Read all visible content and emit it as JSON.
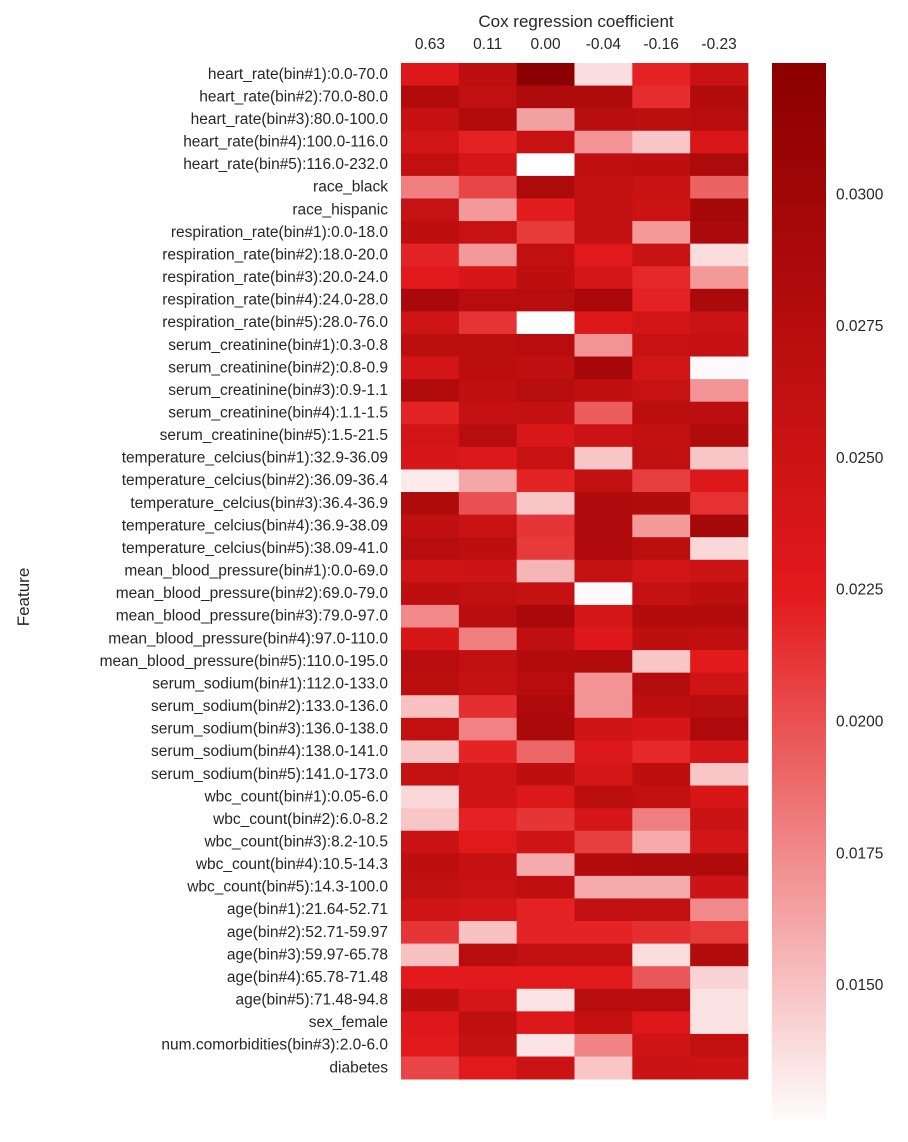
{
  "chart_data": {
    "type": "heatmap",
    "title": "Cox regression coefficient",
    "ylabel": "Feature",
    "columns": [
      "0.63",
      "0.11",
      "0.00",
      "-0.04",
      "-0.16",
      "-0.23"
    ],
    "rows": [
      "heart_rate(bin#1):0.0-70.0",
      "heart_rate(bin#2):70.0-80.0",
      "heart_rate(bin#3):80.0-100.0",
      "heart_rate(bin#4):100.0-116.0",
      "heart_rate(bin#5):116.0-232.0",
      "race_black",
      "race_hispanic",
      "respiration_rate(bin#1):0.0-18.0",
      "respiration_rate(bin#2):18.0-20.0",
      "respiration_rate(bin#3):20.0-24.0",
      "respiration_rate(bin#4):24.0-28.0",
      "respiration_rate(bin#5):28.0-76.0",
      "serum_creatinine(bin#1):0.3-0.8",
      "serum_creatinine(bin#2):0.8-0.9",
      "serum_creatinine(bin#3):0.9-1.1",
      "serum_creatinine(bin#4):1.1-1.5",
      "serum_creatinine(bin#5):1.5-21.5",
      "temperature_celcius(bin#1):32.9-36.09",
      "temperature_celcius(bin#2):36.09-36.4",
      "temperature_celcius(bin#3):36.4-36.9",
      "temperature_celcius(bin#4):36.9-38.09",
      "temperature_celcius(bin#5):38.09-41.0",
      "mean_blood_pressure(bin#1):0.0-69.0",
      "mean_blood_pressure(bin#2):69.0-79.0",
      "mean_blood_pressure(bin#3):79.0-97.0",
      "mean_blood_pressure(bin#4):97.0-110.0",
      "mean_blood_pressure(bin#5):110.0-195.0",
      "serum_sodium(bin#1):112.0-133.0",
      "serum_sodium(bin#2):133.0-136.0",
      "serum_sodium(bin#3):136.0-138.0",
      "serum_sodium(bin#4):138.0-141.0",
      "serum_sodium(bin#5):141.0-173.0",
      "wbc_count(bin#1):0.05-6.0",
      "wbc_count(bin#2):6.0-8.2",
      "wbc_count(bin#3):8.2-10.5",
      "wbc_count(bin#4):10.5-14.3",
      "wbc_count(bin#5):14.3-100.0",
      "age(bin#1):21.64-52.71",
      "age(bin#2):52.71-59.97",
      "age(bin#3):59.97-65.78",
      "age(bin#4):65.78-71.48",
      "age(bin#5):71.48-94.8",
      "sex_female",
      "num.comorbidities(bin#3):2.0-6.0",
      "diabetes"
    ],
    "values": [
      [
        0.023,
        0.0266,
        0.0325,
        0.0137,
        0.0221,
        0.0254
      ],
      [
        0.0281,
        0.0263,
        0.0283,
        0.0284,
        0.0216,
        0.028
      ],
      [
        0.0259,
        0.0281,
        0.0165,
        0.0272,
        0.027,
        0.0275
      ],
      [
        0.0245,
        0.0221,
        0.0256,
        0.017,
        0.0148,
        0.0236
      ],
      [
        0.0262,
        0.0241,
        0.012,
        0.0265,
        0.0268,
        0.0286
      ],
      [
        0.018,
        0.0205,
        0.0286,
        0.0262,
        0.0255,
        0.0192
      ],
      [
        0.0257,
        0.0168,
        0.0223,
        0.0262,
        0.0252,
        0.0295
      ],
      [
        0.0268,
        0.0257,
        0.021,
        0.0261,
        0.0168,
        0.0288
      ],
      [
        0.022,
        0.0168,
        0.0262,
        0.0228,
        0.0254,
        0.0138
      ],
      [
        0.0225,
        0.0238,
        0.0267,
        0.024,
        0.0218,
        0.0168
      ],
      [
        0.029,
        0.0275,
        0.0274,
        0.0292,
        0.0221,
        0.0288
      ],
      [
        0.0248,
        0.0213,
        0.012,
        0.023,
        0.0244,
        0.0253
      ],
      [
        0.027,
        0.027,
        0.0274,
        0.017,
        0.0257,
        0.0258
      ],
      [
        0.0242,
        0.0271,
        0.0265,
        0.0294,
        0.0245,
        0.0125
      ],
      [
        0.0281,
        0.0265,
        0.0276,
        0.0265,
        0.0257,
        0.017
      ],
      [
        0.022,
        0.0258,
        0.0261,
        0.0195,
        0.027,
        0.027
      ],
      [
        0.0245,
        0.0274,
        0.0237,
        0.0251,
        0.0262,
        0.0281
      ],
      [
        0.0238,
        0.0231,
        0.0256,
        0.0148,
        0.0263,
        0.0148
      ],
      [
        0.0132,
        0.0162,
        0.022,
        0.0262,
        0.0208,
        0.0232
      ],
      [
        0.0284,
        0.02,
        0.0148,
        0.0283,
        0.028,
        0.0214
      ],
      [
        0.0265,
        0.0255,
        0.0212,
        0.0285,
        0.0168,
        0.0295
      ],
      [
        0.0275,
        0.0267,
        0.021,
        0.0283,
        0.027,
        0.014
      ],
      [
        0.0248,
        0.025,
        0.0155,
        0.0258,
        0.0243,
        0.0251
      ],
      [
        0.0268,
        0.0263,
        0.026,
        0.0125,
        0.0258,
        0.0267
      ],
      [
        0.0175,
        0.0272,
        0.029,
        0.024,
        0.0278,
        0.028
      ],
      [
        0.0238,
        0.018,
        0.0265,
        0.023,
        0.0267,
        0.0265
      ],
      [
        0.0272,
        0.0264,
        0.0278,
        0.0281,
        0.0148,
        0.0225
      ],
      [
        0.0271,
        0.026,
        0.0275,
        0.017,
        0.0277,
        0.0248
      ],
      [
        0.015,
        0.0215,
        0.0285,
        0.017,
        0.0268,
        0.0275
      ],
      [
        0.0262,
        0.0178,
        0.0288,
        0.0247,
        0.0239,
        0.0285
      ],
      [
        0.0148,
        0.022,
        0.019,
        0.0231,
        0.0218,
        0.024
      ],
      [
        0.026,
        0.0248,
        0.0266,
        0.0241,
        0.0268,
        0.0148
      ],
      [
        0.014,
        0.0248,
        0.0232,
        0.027,
        0.0262,
        0.0238
      ],
      [
        0.0148,
        0.0221,
        0.0212,
        0.024,
        0.018,
        0.0255
      ],
      [
        0.0254,
        0.0228,
        0.0248,
        0.0208,
        0.016,
        0.0244
      ],
      [
        0.0268,
        0.0258,
        0.016,
        0.0278,
        0.0283,
        0.0284
      ],
      [
        0.0264,
        0.0256,
        0.0265,
        0.016,
        0.016,
        0.025
      ],
      [
        0.0248,
        0.024,
        0.022,
        0.0261,
        0.0263,
        0.0175
      ],
      [
        0.0212,
        0.015,
        0.022,
        0.022,
        0.0215,
        0.021
      ],
      [
        0.015,
        0.0275,
        0.0264,
        0.0262,
        0.0138,
        0.028
      ],
      [
        0.0225,
        0.0225,
        0.0226,
        0.0228,
        0.0197,
        0.0142
      ],
      [
        0.0267,
        0.024,
        0.0135,
        0.0272,
        0.0275,
        0.0136
      ],
      [
        0.023,
        0.0265,
        0.023,
        0.0262,
        0.023,
        0.0136
      ],
      [
        0.0225,
        0.026,
        0.0135,
        0.0178,
        0.0248,
        0.0262
      ],
      [
        0.0205,
        0.0228,
        0.0252,
        0.0148,
        0.0255,
        0.0252
      ]
    ],
    "colorbar": {
      "range": [
        0.0123,
        0.0325
      ],
      "ticks": [
        0.015,
        0.0175,
        0.02,
        0.0225,
        0.025,
        0.0275,
        0.03
      ],
      "tick_labels": [
        "0.0150",
        "0.0175",
        "0.0200",
        "0.0225",
        "0.0250",
        "0.0275",
        "0.0300"
      ],
      "colormap": [
        "#ffffff",
        "#e31a1c",
        "#8b0000"
      ]
    }
  }
}
